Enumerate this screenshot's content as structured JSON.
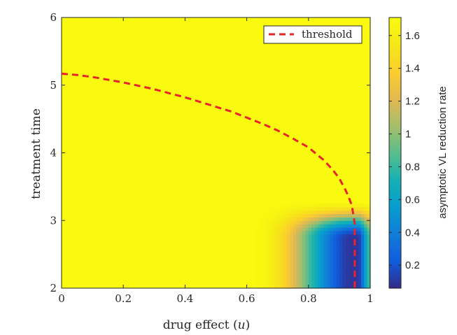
{
  "chart_data": {
    "type": "heatmap",
    "xlabel_prefix": "drug effect (",
    "xlabel_var": "u",
    "xlabel_suffix": ")",
    "ylabel": "treatment time",
    "colorbar_label": "asymptotic VL reduction rate",
    "xlim": [
      0,
      1
    ],
    "ylim": [
      2,
      6
    ],
    "clim": [
      0.06,
      1.71
    ],
    "x_ticks": [
      0,
      0.2,
      0.4,
      0.6,
      0.8,
      1
    ],
    "x_tick_labels": [
      "0",
      "0.2",
      "0.4",
      "0.6",
      "0.8",
      "1"
    ],
    "y_ticks": [
      2,
      3,
      4,
      5,
      6
    ],
    "y_tick_labels": [
      "2",
      "3",
      "4",
      "5",
      "6"
    ],
    "colorbar_ticks": [
      0.2,
      0.4,
      0.6,
      0.8,
      1,
      1.2,
      1.4,
      1.6
    ],
    "colorbar_tick_labels": [
      "0.2",
      "0.4",
      "0.6",
      "0.8",
      "1",
      "1.2",
      "1.4",
      "1.6"
    ],
    "colormap": "parula",
    "background_value": 1.7,
    "low_region": {
      "u_min": 0.6,
      "t_max": 3.3,
      "min_value": 0.1,
      "min_at_u": 0.94
    },
    "legend": {
      "label": "threshold",
      "location": "top-right",
      "color": "#e8232a",
      "style": "dashed"
    },
    "series": [
      {
        "name": "threshold",
        "x": [
          0,
          0.05,
          0.1,
          0.15,
          0.2,
          0.25,
          0.3,
          0.35,
          0.4,
          0.45,
          0.5,
          0.55,
          0.6,
          0.65,
          0.7,
          0.75,
          0.8,
          0.85,
          0.88,
          0.9,
          0.92,
          0.93,
          0.94,
          0.945,
          0.95,
          0.95,
          0.95
        ],
        "y": [
          5.17,
          5.15,
          5.12,
          5.08,
          5.04,
          4.99,
          4.94,
          4.88,
          4.82,
          4.75,
          4.68,
          4.61,
          4.52,
          4.43,
          4.33,
          4.21,
          4.08,
          3.89,
          3.74,
          3.62,
          3.45,
          3.35,
          3.23,
          3.1,
          2.95,
          2.5,
          2.0
        ]
      }
    ]
  }
}
